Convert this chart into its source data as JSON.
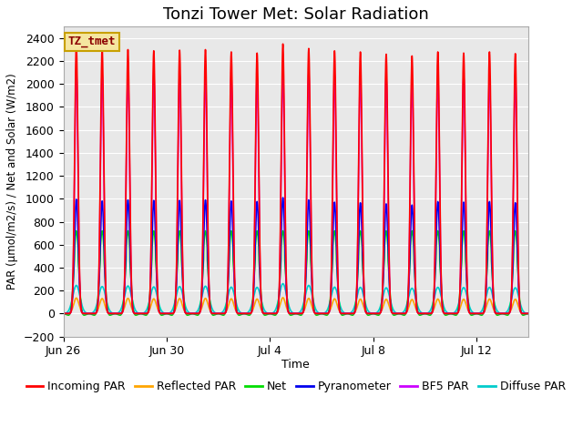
{
  "title": "Tonzi Tower Met: Solar Radiation",
  "xlabel": "Time",
  "ylabel": "PAR (μmol/m2/s) / Net and Solar (W/m2)",
  "ylim": [
    -200,
    2500
  ],
  "yticks": [
    -200,
    0,
    200,
    400,
    600,
    800,
    1000,
    1200,
    1400,
    1600,
    1800,
    2000,
    2200,
    2400
  ],
  "plot_bg_color": "#e8e8e8",
  "grid_color": "#ffffff",
  "title_fontsize": 13,
  "label_box_text": "TZ_tmet",
  "label_box_bg": "#f5e6a0",
  "label_box_border": "#c8a000",
  "label_box_text_color": "#8b0000",
  "series": [
    {
      "name": "Incoming PAR",
      "color": "#ff0000",
      "linewidth": 1.2
    },
    {
      "name": "Reflected PAR",
      "color": "#ffa500",
      "linewidth": 1.2
    },
    {
      "name": "Net",
      "color": "#00dd00",
      "linewidth": 1.2
    },
    {
      "name": "Pyranometer",
      "color": "#0000ee",
      "linewidth": 1.2
    },
    {
      "name": "BF5 PAR",
      "color": "#cc00ff",
      "linewidth": 1.2
    },
    {
      "name": "Diffuse PAR",
      "color": "#00cccc",
      "linewidth": 1.2
    }
  ],
  "n_days": 18,
  "samples_per_day": 288,
  "x_tick_positions": [
    0,
    4,
    8,
    12,
    16
  ],
  "x_tick_labels": [
    "Jun 26",
    "Jun 30",
    "Jul 4",
    "Jul 8",
    "Jul 12"
  ],
  "legend_fontsize": 9
}
